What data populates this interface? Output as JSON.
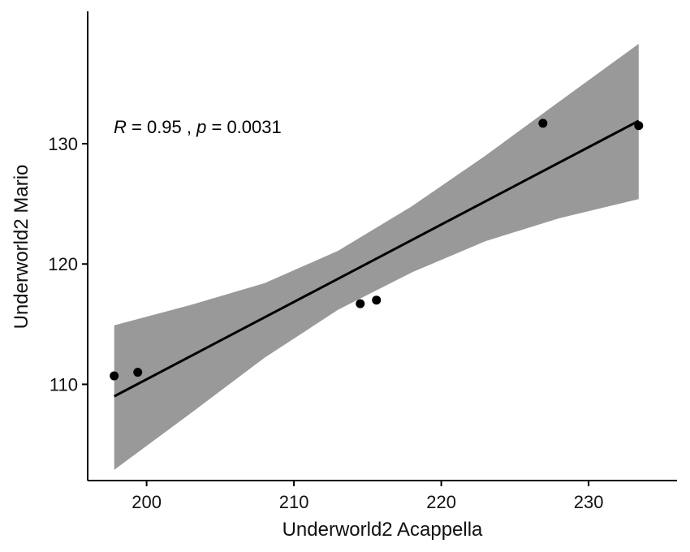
{
  "chart_data": {
    "type": "scatter",
    "title": "",
    "xlabel": "Underworld2 Acappella",
    "ylabel": "Underworld2 Mario",
    "xlim": [
      196,
      236
    ],
    "ylim": [
      102,
      141
    ],
    "xticks": [
      200,
      210,
      220,
      230
    ],
    "yticks": [
      110,
      120,
      130
    ],
    "grid": false,
    "points": [
      {
        "x": 197.8,
        "y": 110.7
      },
      {
        "x": 199.4,
        "y": 111.0
      },
      {
        "x": 214.5,
        "y": 116.7
      },
      {
        "x": 215.6,
        "y": 117.0
      },
      {
        "x": 226.9,
        "y": 131.7
      },
      {
        "x": 233.4,
        "y": 131.5
      }
    ],
    "regression": {
      "x_start": 197.8,
      "y_start": 109.0,
      "x_end": 233.4,
      "y_end": 131.9
    },
    "confidence_band": {
      "x": [
        197.8,
        203,
        208,
        213,
        218,
        223,
        228,
        233.4
      ],
      "upper": [
        114.9,
        116.6,
        118.4,
        121.1,
        124.8,
        129.0,
        133.5,
        138.3
      ],
      "lower": [
        102.9,
        107.6,
        112.2,
        116.2,
        119.3,
        121.9,
        123.8,
        125.4
      ]
    },
    "annotation": {
      "r_symbol": "R",
      "r_text": " = 0.95 , ",
      "p_symbol": "p",
      "p_text": " = 0.0031"
    },
    "colors": {
      "band": "#999999",
      "line": "#000000",
      "point": "#000000",
      "axis": "#000000"
    }
  }
}
